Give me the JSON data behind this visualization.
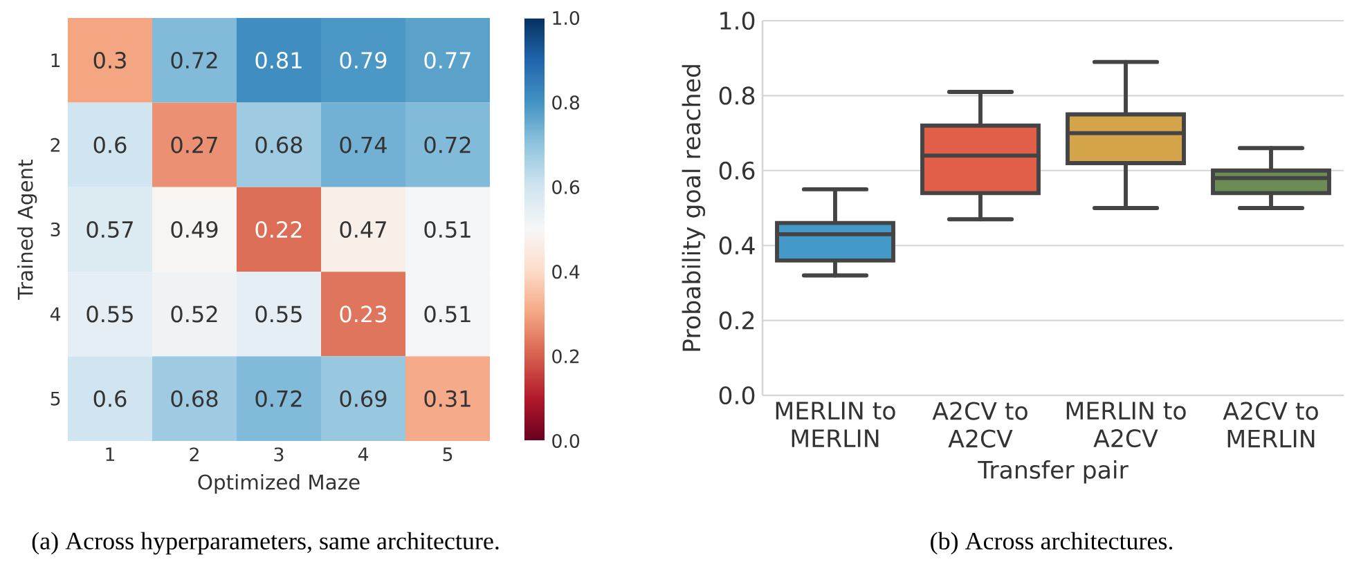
{
  "chart_data": [
    {
      "type": "heatmap",
      "xlabel": "Optimized Maze",
      "ylabel": "Trained Agent",
      "categories": [
        "1",
        "2",
        "3",
        "4",
        "5"
      ],
      "y_categories": [
        "1",
        "2",
        "3",
        "4",
        "5"
      ],
      "cells": [
        [
          0.3,
          0.72,
          0.81,
          0.79,
          0.77
        ],
        [
          0.6,
          0.27,
          0.68,
          0.74,
          0.72
        ],
        [
          0.57,
          0.49,
          0.22,
          0.47,
          0.51
        ],
        [
          0.55,
          0.52,
          0.55,
          0.23,
          0.51
        ],
        [
          0.6,
          0.68,
          0.72,
          0.69,
          0.31
        ]
      ],
      "data_labels": true,
      "clim": [
        0,
        1
      ],
      "cticks": [
        {
          "value": 0,
          "label": "0.0"
        },
        {
          "value": 0.2,
          "label": "0.2"
        },
        {
          "value": 0.4,
          "label": "0.4"
        },
        {
          "value": 0.6,
          "label": "0.6"
        },
        {
          "value": 0.8,
          "label": "0.8"
        },
        {
          "value": 1,
          "label": "1.0"
        }
      ],
      "annotations": [
        "(a) Across hyperparameters, same architecture."
      ]
    },
    {
      "type": "box",
      "xlabel": "Transfer pair",
      "ylabel": "Probability goal reached",
      "categories": [
        "MERLIN to MERLIN",
        "A2CV to A2CV",
        "MERLIN to A2CV",
        "A2CV to MERLIN"
      ],
      "boxes": [
        {
          "low": 0.32,
          "q1": 0.36,
          "median": 0.43,
          "q3": 0.46,
          "high": 0.55
        },
        {
          "low": 0.47,
          "q1": 0.54,
          "median": 0.64,
          "q3": 0.72,
          "high": 0.81
        },
        {
          "low": 0.5,
          "q1": 0.62,
          "median": 0.7,
          "q3": 0.75,
          "high": 0.89
        },
        {
          "low": 0.5,
          "q1": 0.54,
          "median": 0.58,
          "q3": 0.6,
          "high": 0.66
        }
      ],
      "colors": [
        "#4599c9",
        "#e15f48",
        "#d4a44a",
        "#6d8c55"
      ],
      "ylim": [
        0,
        1
      ],
      "yticks": [
        {
          "value": 0,
          "label": "0.0"
        },
        {
          "value": 0.2,
          "label": "0.2"
        },
        {
          "value": 0.4,
          "label": "0.4"
        },
        {
          "value": 0.6,
          "label": "0.6"
        },
        {
          "value": 0.8,
          "label": "0.8"
        },
        {
          "value": 1,
          "label": "1.0"
        }
      ],
      "grid": "y",
      "annotations": [
        "(b) Across architectures."
      ]
    }
  ]
}
